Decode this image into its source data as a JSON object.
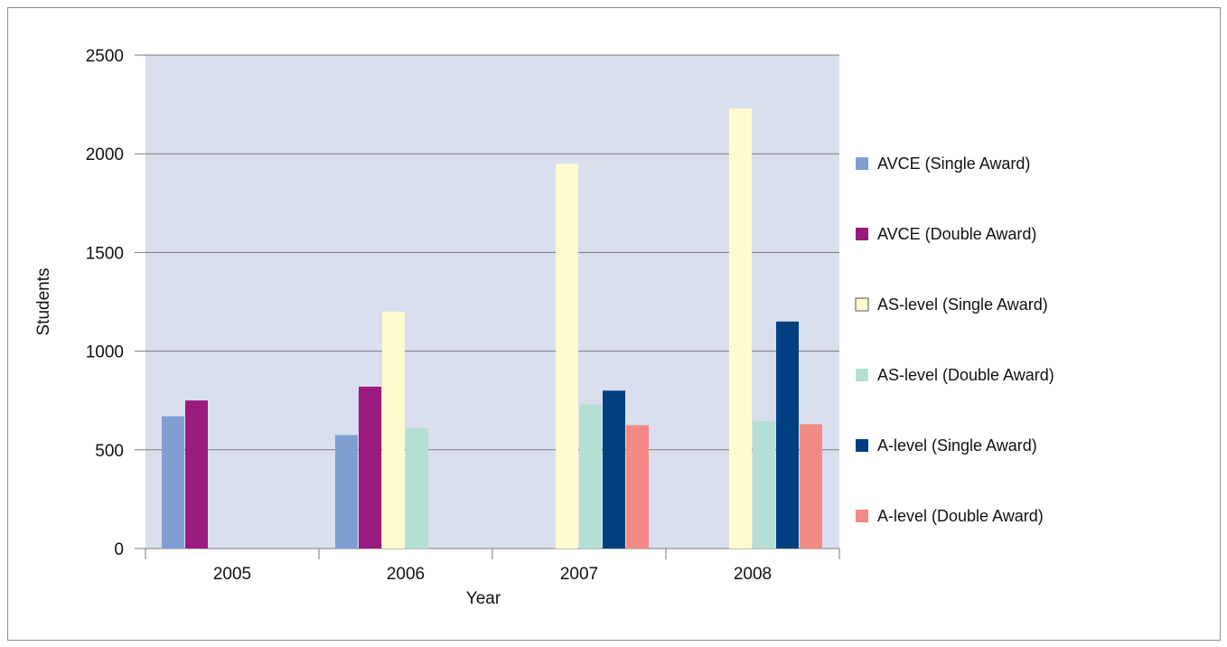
{
  "chart_data": {
    "type": "bar",
    "categories": [
      "2005",
      "2006",
      "2007",
      "2008"
    ],
    "series": [
      {
        "name": "AVCE (Single Award)",
        "color": "#7f9fd3",
        "values": [
          670,
          575,
          0,
          0
        ]
      },
      {
        "name": "AVCE (Double Award)",
        "color": "#9a1a7e",
        "values": [
          750,
          820,
          0,
          0
        ]
      },
      {
        "name": "AS-level (Single Award)",
        "color": "#fffbd0",
        "values": [
          0,
          1200,
          1950,
          2230
        ]
      },
      {
        "name": "AS-level (Double Award)",
        "color": "#b3e0d3",
        "values": [
          0,
          610,
          730,
          645
        ]
      },
      {
        "name": "A-level (Single Award)",
        "color": "#004080",
        "values": [
          0,
          0,
          800,
          1150
        ]
      },
      {
        "name": "A-level (Double Award)",
        "color": "#f28a86",
        "values": [
          0,
          0,
          625,
          630
        ]
      }
    ],
    "xlabel": "Year",
    "ylabel": "Students",
    "ylim": [
      0,
      2500
    ],
    "yticks": [
      0,
      500,
      1000,
      1500,
      2000,
      2500
    ],
    "grid": true,
    "legend_position": "right",
    "plot_background": "#d9dfed"
  }
}
